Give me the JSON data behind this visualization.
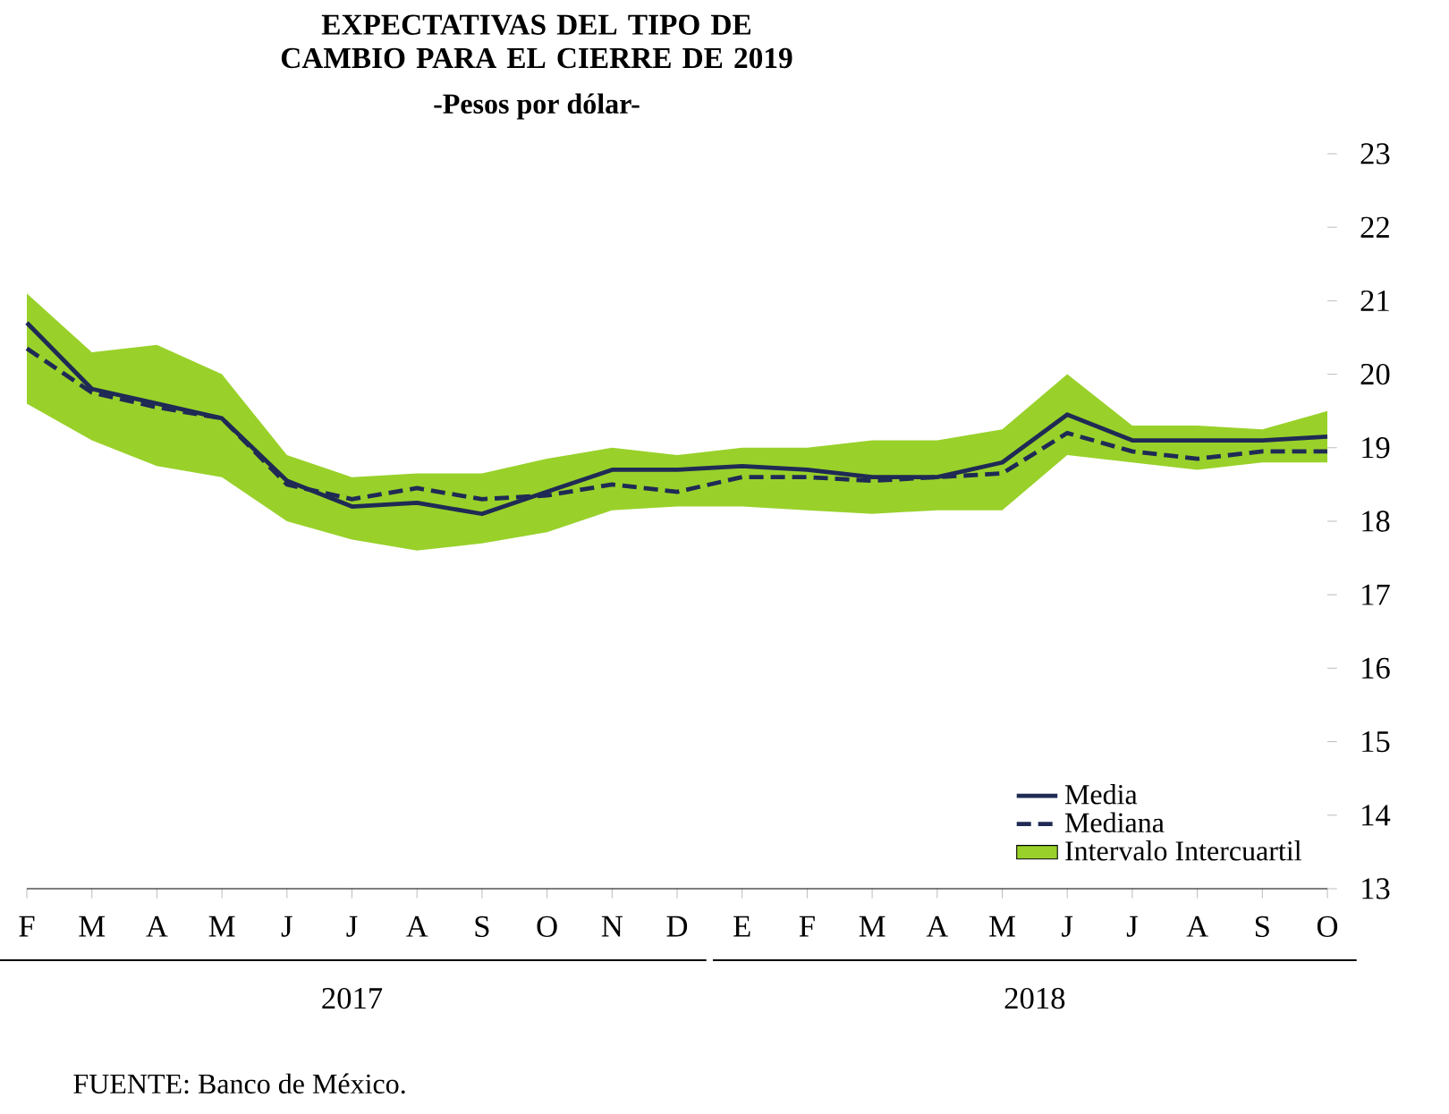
{
  "chart_data": {
    "type": "line",
    "title": "EXPECTATIVAS DEL TIPO DE CAMBIO PARA EL CIERRE DE 2019",
    "subtitle": "-Pesos por dólar-",
    "categories": [
      "F",
      "M",
      "A",
      "M",
      "J",
      "J",
      "A",
      "S",
      "O",
      "N",
      "D",
      "E",
      "F",
      "M",
      "A",
      "M",
      "J",
      "J",
      "A",
      "S",
      "O"
    ],
    "series": [
      {
        "name": "Media",
        "type": "line",
        "line_style": "solid",
        "color": "#1f2a55",
        "values": [
          20.7,
          19.8,
          19.6,
          19.4,
          18.55,
          18.2,
          18.25,
          18.1,
          18.4,
          18.7,
          18.7,
          18.75,
          18.7,
          18.6,
          18.6,
          18.8,
          19.45,
          19.1,
          19.1,
          19.1,
          19.15
        ]
      },
      {
        "name": "Mediana",
        "type": "line",
        "line_style": "dashed",
        "color": "#1f2a55",
        "values": [
          20.35,
          19.75,
          19.55,
          19.4,
          18.5,
          18.3,
          18.45,
          18.3,
          18.35,
          18.5,
          18.4,
          18.6,
          18.6,
          18.55,
          18.6,
          18.65,
          19.2,
          18.95,
          18.85,
          18.95,
          18.95
        ]
      },
      {
        "name": "Intervalo Intercuartil",
        "type": "area",
        "color": "#99d12a",
        "values": [
          null,
          null,
          null,
          null,
          null,
          null,
          null,
          null,
          null,
          null,
          null,
          null,
          null,
          null,
          null,
          null,
          null,
          null,
          null,
          null,
          null
        ],
        "upper": [
          21.1,
          20.3,
          20.4,
          20.0,
          18.9,
          18.6,
          18.65,
          18.65,
          18.85,
          19.0,
          18.9,
          19.0,
          19.0,
          19.1,
          19.1,
          19.25,
          20.0,
          19.3,
          19.3,
          19.25,
          19.5
        ],
        "lower": [
          19.6,
          19.1,
          18.75,
          18.6,
          18.0,
          17.75,
          17.6,
          17.7,
          17.85,
          18.15,
          18.2,
          18.2,
          18.15,
          18.1,
          18.15,
          18.15,
          18.9,
          18.8,
          18.7,
          18.8,
          18.8
        ]
      }
    ],
    "ylim": [
      13,
      23
    ],
    "yticks": [
      13,
      14,
      15,
      16,
      17,
      18,
      19,
      20,
      21,
      22,
      23
    ],
    "legend": "bottom right",
    "annotations": [
      "2017",
      "2018",
      "FUENTE: Banco de México."
    ]
  }
}
